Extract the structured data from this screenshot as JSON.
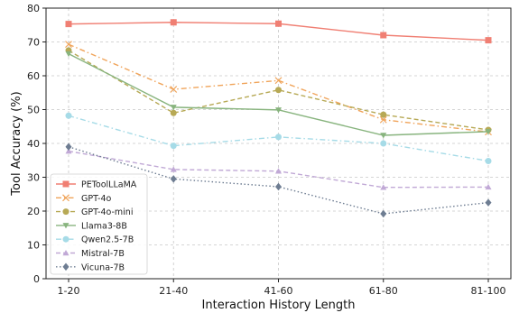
{
  "chart_data": {
    "type": "line",
    "xlabel": "Interaction History Length",
    "ylabel": "Tool Accuracy (%)",
    "categories": [
      "1-20",
      "21-40",
      "41-60",
      "61-80",
      "81-100"
    ],
    "ylim": [
      0,
      80
    ],
    "yticks": [
      0,
      10,
      20,
      30,
      40,
      50,
      60,
      70,
      80
    ],
    "grid": true,
    "legend_position": "bottom-left",
    "series": [
      {
        "name": "PEToolLLaMA",
        "values": [
          75.3,
          75.8,
          75.4,
          72.0,
          70.5
        ],
        "color": "#f07f73",
        "marker": "square",
        "dash": "solid"
      },
      {
        "name": "GPT-4o",
        "values": [
          69.3,
          56.0,
          58.6,
          47.0,
          43.4
        ],
        "color": "#f0a45a",
        "marker": "x",
        "dash": "dashdot"
      },
      {
        "name": "GPT-4o-mini",
        "values": [
          67.5,
          49.0,
          55.8,
          48.5,
          44.0
        ],
        "color": "#b7a955",
        "marker": "circle",
        "dash": "dashed"
      },
      {
        "name": "Llama3-8B",
        "values": [
          66.5,
          50.7,
          49.9,
          42.4,
          43.5
        ],
        "color": "#88b47e",
        "marker": "triangle-down",
        "dash": "solid"
      },
      {
        "name": "Qwen2.5-7B",
        "values": [
          48.2,
          39.3,
          41.9,
          40.0,
          34.8
        ],
        "color": "#a6dbe7",
        "marker": "circle",
        "dash": "dashdot"
      },
      {
        "name": "Mistral-7B",
        "values": [
          37.7,
          32.3,
          31.8,
          27.0,
          27.1
        ],
        "color": "#c1a9d6",
        "marker": "triangle-up",
        "dash": "dashed"
      },
      {
        "name": "Vicuna-7B",
        "values": [
          39.0,
          29.5,
          27.2,
          19.2,
          22.5
        ],
        "color": "#6e7d92",
        "marker": "diamond",
        "dash": "dotted"
      }
    ]
  }
}
